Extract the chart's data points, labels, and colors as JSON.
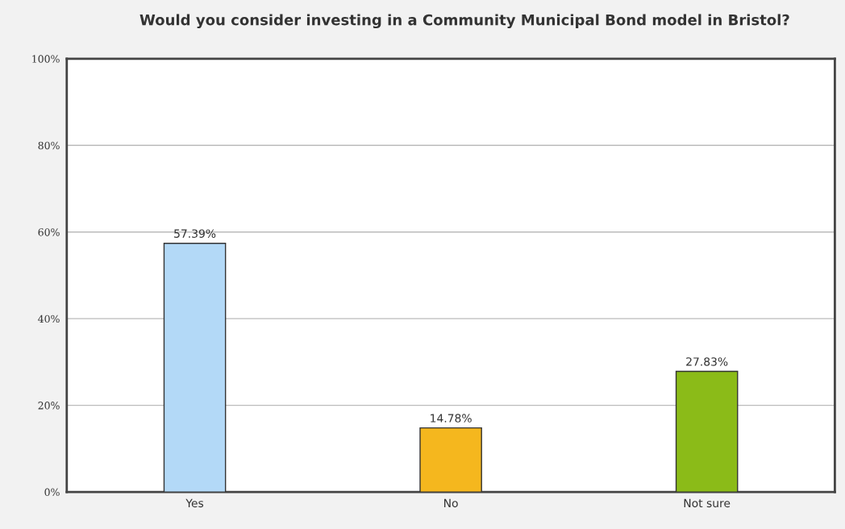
{
  "chart_data": {
    "type": "bar",
    "title": "Would you consider investing in a Community Municipal Bond model in Bristol?",
    "categories": [
      "Yes",
      "No",
      "Not sure"
    ],
    "values": [
      57.39,
      14.78,
      27.83
    ],
    "colors": [
      "#b3d9f7",
      "#f5b71e",
      "#8bbb18"
    ],
    "value_labels": [
      "57.39%",
      "14.78%",
      "27.83%"
    ],
    "ylim": [
      0,
      100
    ],
    "yticks": [
      {
        "value": 0,
        "label": "0%"
      },
      {
        "value": 20,
        "label": "20%"
      },
      {
        "value": 40,
        "label": "40%"
      },
      {
        "value": 60,
        "label": "60%"
      },
      {
        "value": 80,
        "label": "80%"
      },
      {
        "value": 100,
        "label": "100%"
      }
    ],
    "grid": "y"
  }
}
